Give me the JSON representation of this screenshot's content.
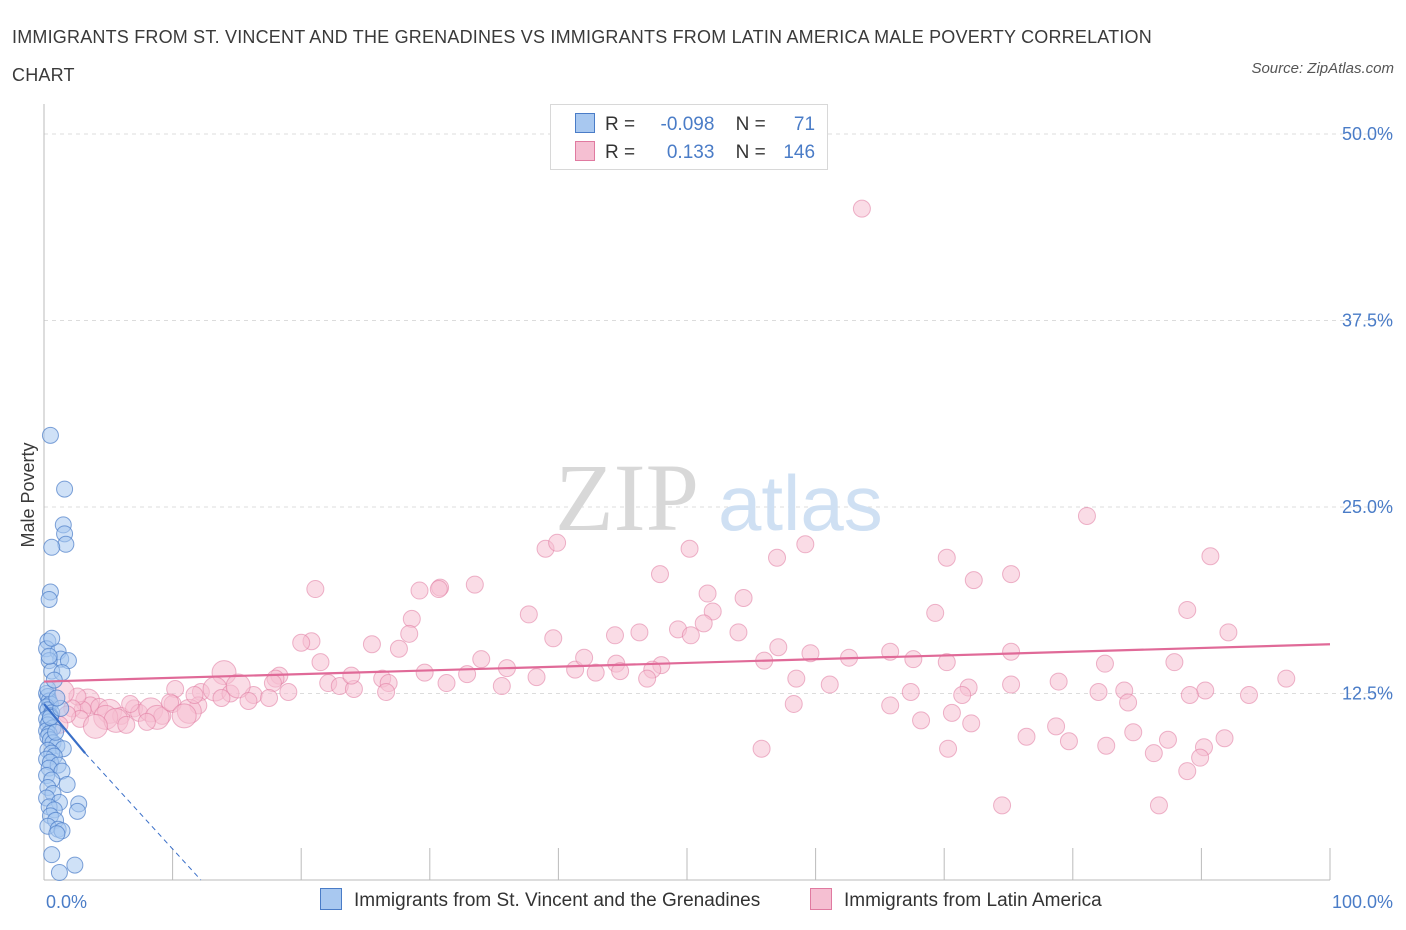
{
  "header": {
    "title": "IMMIGRANTS FROM ST. VINCENT AND THE GRENADINES VS IMMIGRANTS FROM LATIN AMERICA MALE POVERTY CORRELATION CHART",
    "source": "Source: ZipAtlas.com"
  },
  "legend": {
    "rows": [
      {
        "r_label": "R =",
        "r_value": "-0.098",
        "n_label": "N =",
        "n_value": "71",
        "color": "#4a7cc7",
        "fill": "#a8c8f0"
      },
      {
        "r_label": "R =",
        "r_value": "0.133",
        "n_label": "N =",
        "n_value": "146",
        "color": "#e07aa0",
        "fill": "#f5bfd2"
      }
    ]
  },
  "watermark": {
    "zip": "ZIP",
    "atlas": "atlas"
  },
  "colors": {
    "blue": "#4a7cc7",
    "blue_fill": "#a8c8f0",
    "pink": "#e07aa0",
    "pink_fill": "#f5bfd2",
    "pink_line": "#e06a98",
    "blue_line": "#3a6fc8"
  },
  "chart_data": {
    "type": "scatter",
    "ylabel": "Male Poverty",
    "xlim": [
      0,
      100
    ],
    "ylim": [
      0,
      50
    ],
    "x_ticks": [
      "0.0%",
      "100.0%"
    ],
    "y_ticks": [
      {
        "v": 12.5,
        "label": "12.5%"
      },
      {
        "v": 25,
        "label": "25.0%"
      },
      {
        "v": 37.5,
        "label": "37.5%"
      },
      {
        "v": 50,
        "label": "50.0%"
      }
    ],
    "grid": true,
    "legend_position": "top-center",
    "series": [
      {
        "name": "Immigrants from St. Vincent and the Grenadines",
        "color": "#4a7cc7",
        "trend": {
          "x": [
            0,
            3.2
          ],
          "y": [
            11.8,
            8.5
          ],
          "dashed_to": [
            12.2,
            0
          ]
        },
        "points": [
          [
            0.5,
            29.8
          ],
          [
            1.6,
            26.2
          ],
          [
            1.5,
            23.8
          ],
          [
            1.6,
            23.2
          ],
          [
            1.7,
            22.5
          ],
          [
            0.6,
            22.3
          ],
          [
            0.5,
            19.3
          ],
          [
            0.4,
            18.8
          ],
          [
            0.3,
            16.0
          ],
          [
            0.2,
            15.5
          ],
          [
            1.1,
            15.3
          ],
          [
            1.3,
            14.8
          ],
          [
            0.4,
            14.7
          ],
          [
            1.9,
            14.7
          ],
          [
            0.6,
            14.0
          ],
          [
            1.4,
            13.9
          ],
          [
            0.2,
            12.5
          ],
          [
            0.3,
            12.3
          ],
          [
            0.4,
            12.0
          ],
          [
            0.5,
            11.8
          ],
          [
            0.2,
            11.6
          ],
          [
            0.3,
            11.4
          ],
          [
            0.6,
            11.2
          ],
          [
            0.5,
            11.0
          ],
          [
            0.2,
            10.8
          ],
          [
            0.4,
            10.6
          ],
          [
            0.3,
            10.4
          ],
          [
            0.7,
            10.2
          ],
          [
            0.2,
            10.0
          ],
          [
            0.4,
            9.8
          ],
          [
            0.3,
            9.6
          ],
          [
            0.5,
            9.4
          ],
          [
            0.7,
            9.2
          ],
          [
            1.0,
            9.0
          ],
          [
            1.5,
            8.8
          ],
          [
            0.3,
            8.7
          ],
          [
            0.6,
            8.5
          ],
          [
            0.8,
            8.3
          ],
          [
            0.2,
            8.1
          ],
          [
            0.5,
            7.9
          ],
          [
            1.1,
            7.7
          ],
          [
            0.4,
            7.5
          ],
          [
            1.4,
            7.3
          ],
          [
            0.2,
            7.0
          ],
          [
            0.6,
            6.7
          ],
          [
            1.8,
            6.4
          ],
          [
            0.3,
            6.2
          ],
          [
            0.7,
            5.8
          ],
          [
            0.2,
            5.5
          ],
          [
            1.2,
            5.2
          ],
          [
            2.7,
            5.1
          ],
          [
            0.4,
            4.9
          ],
          [
            0.8,
            4.7
          ],
          [
            2.6,
            4.6
          ],
          [
            0.5,
            4.3
          ],
          [
            0.9,
            4.0
          ],
          [
            0.3,
            3.6
          ],
          [
            1.1,
            3.4
          ],
          [
            1.4,
            3.3
          ],
          [
            1.0,
            3.1
          ],
          [
            0.6,
            1.7
          ],
          [
            2.4,
            1.0
          ],
          [
            1.2,
            0.5
          ],
          [
            0.3,
            12.8
          ],
          [
            0.8,
            13.4
          ],
          [
            0.5,
            10.9
          ],
          [
            1.3,
            11.5
          ],
          [
            0.9,
            9.9
          ],
          [
            0.4,
            15.0
          ],
          [
            0.6,
            16.2
          ],
          [
            1.0,
            12.2
          ]
        ]
      },
      {
        "name": "Immigrants from Latin America",
        "color": "#e07aa0",
        "trend": {
          "x": [
            0,
            100
          ],
          "y": [
            13.3,
            15.8
          ]
        },
        "points": [
          [
            63.6,
            45.0
          ],
          [
            39.0,
            22.2
          ],
          [
            59.2,
            22.5
          ],
          [
            57.0,
            21.6
          ],
          [
            50.2,
            22.2
          ],
          [
            70.2,
            21.6
          ],
          [
            39.9,
            22.6
          ],
          [
            75.2,
            20.5
          ],
          [
            81.1,
            24.4
          ],
          [
            90.7,
            21.7
          ],
          [
            21.1,
            19.5
          ],
          [
            30.8,
            19.6
          ],
          [
            30.7,
            19.5
          ],
          [
            33.5,
            19.8
          ],
          [
            29.2,
            19.4
          ],
          [
            47.9,
            20.5
          ],
          [
            51.6,
            19.2
          ],
          [
            72.3,
            20.1
          ],
          [
            88.9,
            18.1
          ],
          [
            54.4,
            18.9
          ],
          [
            52.0,
            18.0
          ],
          [
            51.3,
            17.2
          ],
          [
            28.6,
            17.5
          ],
          [
            37.7,
            17.8
          ],
          [
            49.3,
            16.8
          ],
          [
            69.3,
            17.9
          ],
          [
            46.3,
            16.6
          ],
          [
            50.3,
            16.4
          ],
          [
            54.0,
            16.6
          ],
          [
            44.4,
            16.4
          ],
          [
            28.4,
            16.5
          ],
          [
            92.1,
            16.6
          ],
          [
            39.6,
            16.2
          ],
          [
            20.8,
            16.0
          ],
          [
            25.5,
            15.8
          ],
          [
            27.6,
            15.5
          ],
          [
            20.0,
            15.9
          ],
          [
            57.1,
            15.6
          ],
          [
            59.6,
            15.2
          ],
          [
            65.8,
            15.3
          ],
          [
            82.5,
            14.5
          ],
          [
            70.2,
            14.6
          ],
          [
            67.6,
            14.8
          ],
          [
            56.0,
            14.7
          ],
          [
            75.2,
            15.3
          ],
          [
            62.6,
            14.9
          ],
          [
            87.9,
            14.6
          ],
          [
            48.0,
            14.4
          ],
          [
            36.0,
            14.2
          ],
          [
            44.5,
            14.5
          ],
          [
            21.5,
            14.6
          ],
          [
            34.0,
            14.8
          ],
          [
            41.3,
            14.1
          ],
          [
            44.8,
            14.0
          ],
          [
            47.3,
            14.1
          ],
          [
            42.9,
            13.9
          ],
          [
            32.9,
            13.8
          ],
          [
            14.0,
            13.9
          ],
          [
            58.5,
            13.5
          ],
          [
            46.9,
            13.5
          ],
          [
            18.3,
            13.7
          ],
          [
            29.6,
            13.9
          ],
          [
            18.0,
            13.5
          ],
          [
            17.8,
            13.2
          ],
          [
            22.1,
            13.2
          ],
          [
            26.3,
            13.5
          ],
          [
            26.8,
            13.2
          ],
          [
            23.0,
            13.0
          ],
          [
            24.1,
            12.8
          ],
          [
            26.6,
            12.6
          ],
          [
            10.2,
            12.8
          ],
          [
            12.2,
            12.6
          ],
          [
            13.3,
            12.8
          ],
          [
            16.3,
            12.4
          ],
          [
            17.5,
            12.2
          ],
          [
            61.1,
            13.1
          ],
          [
            67.4,
            12.6
          ],
          [
            71.9,
            12.9
          ],
          [
            78.9,
            13.3
          ],
          [
            75.2,
            13.1
          ],
          [
            84.0,
            12.7
          ],
          [
            58.3,
            11.8
          ],
          [
            65.8,
            11.7
          ],
          [
            68.2,
            10.7
          ],
          [
            72.1,
            10.5
          ],
          [
            70.6,
            11.2
          ],
          [
            78.7,
            10.3
          ],
          [
            84.7,
            9.9
          ],
          [
            79.7,
            9.3
          ],
          [
            82.6,
            9.0
          ],
          [
            90.2,
            8.9
          ],
          [
            91.8,
            9.5
          ],
          [
            76.4,
            9.6
          ],
          [
            86.3,
            8.5
          ],
          [
            87.4,
            9.4
          ],
          [
            88.9,
            7.3
          ],
          [
            89.9,
            8.2
          ],
          [
            70.3,
            8.8
          ],
          [
            55.8,
            8.8
          ],
          [
            86.7,
            5.0
          ],
          [
            74.5,
            5.0
          ],
          [
            90.3,
            12.7
          ],
          [
            82.0,
            12.6
          ],
          [
            71.4,
            12.4
          ],
          [
            84.3,
            11.9
          ],
          [
            93.7,
            12.4
          ],
          [
            96.6,
            13.5
          ],
          [
            89.1,
            12.4
          ],
          [
            3.4,
            12.0
          ],
          [
            3.6,
            11.7
          ],
          [
            4.3,
            11.6
          ],
          [
            5.1,
            11.3
          ],
          [
            6.0,
            11.0
          ],
          [
            3.0,
            11.4
          ],
          [
            4.8,
            10.9
          ],
          [
            7.0,
            11.5
          ],
          [
            7.4,
            11.2
          ],
          [
            8.3,
            11.4
          ],
          [
            9.2,
            11.0
          ],
          [
            10.0,
            11.8
          ],
          [
            5.6,
            10.7
          ],
          [
            2.6,
            12.3
          ],
          [
            6.4,
            10.4
          ],
          [
            8.8,
            10.9
          ],
          [
            2.2,
            11.5
          ],
          [
            12.0,
            11.7
          ],
          [
            11.3,
            11.3
          ],
          [
            9.8,
            11.9
          ],
          [
            14.5,
            12.5
          ],
          [
            15.1,
            13.0
          ],
          [
            13.8,
            12.2
          ],
          [
            2.8,
            10.8
          ],
          [
            1.4,
            12.6
          ],
          [
            1.8,
            11.1
          ],
          [
            1.2,
            10.4
          ],
          [
            4.0,
            10.3
          ],
          [
            6.7,
            11.8
          ],
          [
            8.0,
            10.6
          ],
          [
            10.9,
            11.0
          ],
          [
            11.7,
            12.4
          ],
          [
            15.9,
            12.0
          ],
          [
            19.0,
            12.6
          ],
          [
            23.9,
            13.7
          ],
          [
            31.3,
            13.2
          ],
          [
            35.6,
            13.0
          ],
          [
            38.3,
            13.6
          ],
          [
            42.0,
            14.9
          ]
        ]
      }
    ]
  },
  "bottom_legend": [
    {
      "label": "Immigrants from St. Vincent and the Grenadines"
    },
    {
      "label": "Immigrants from Latin America"
    }
  ]
}
